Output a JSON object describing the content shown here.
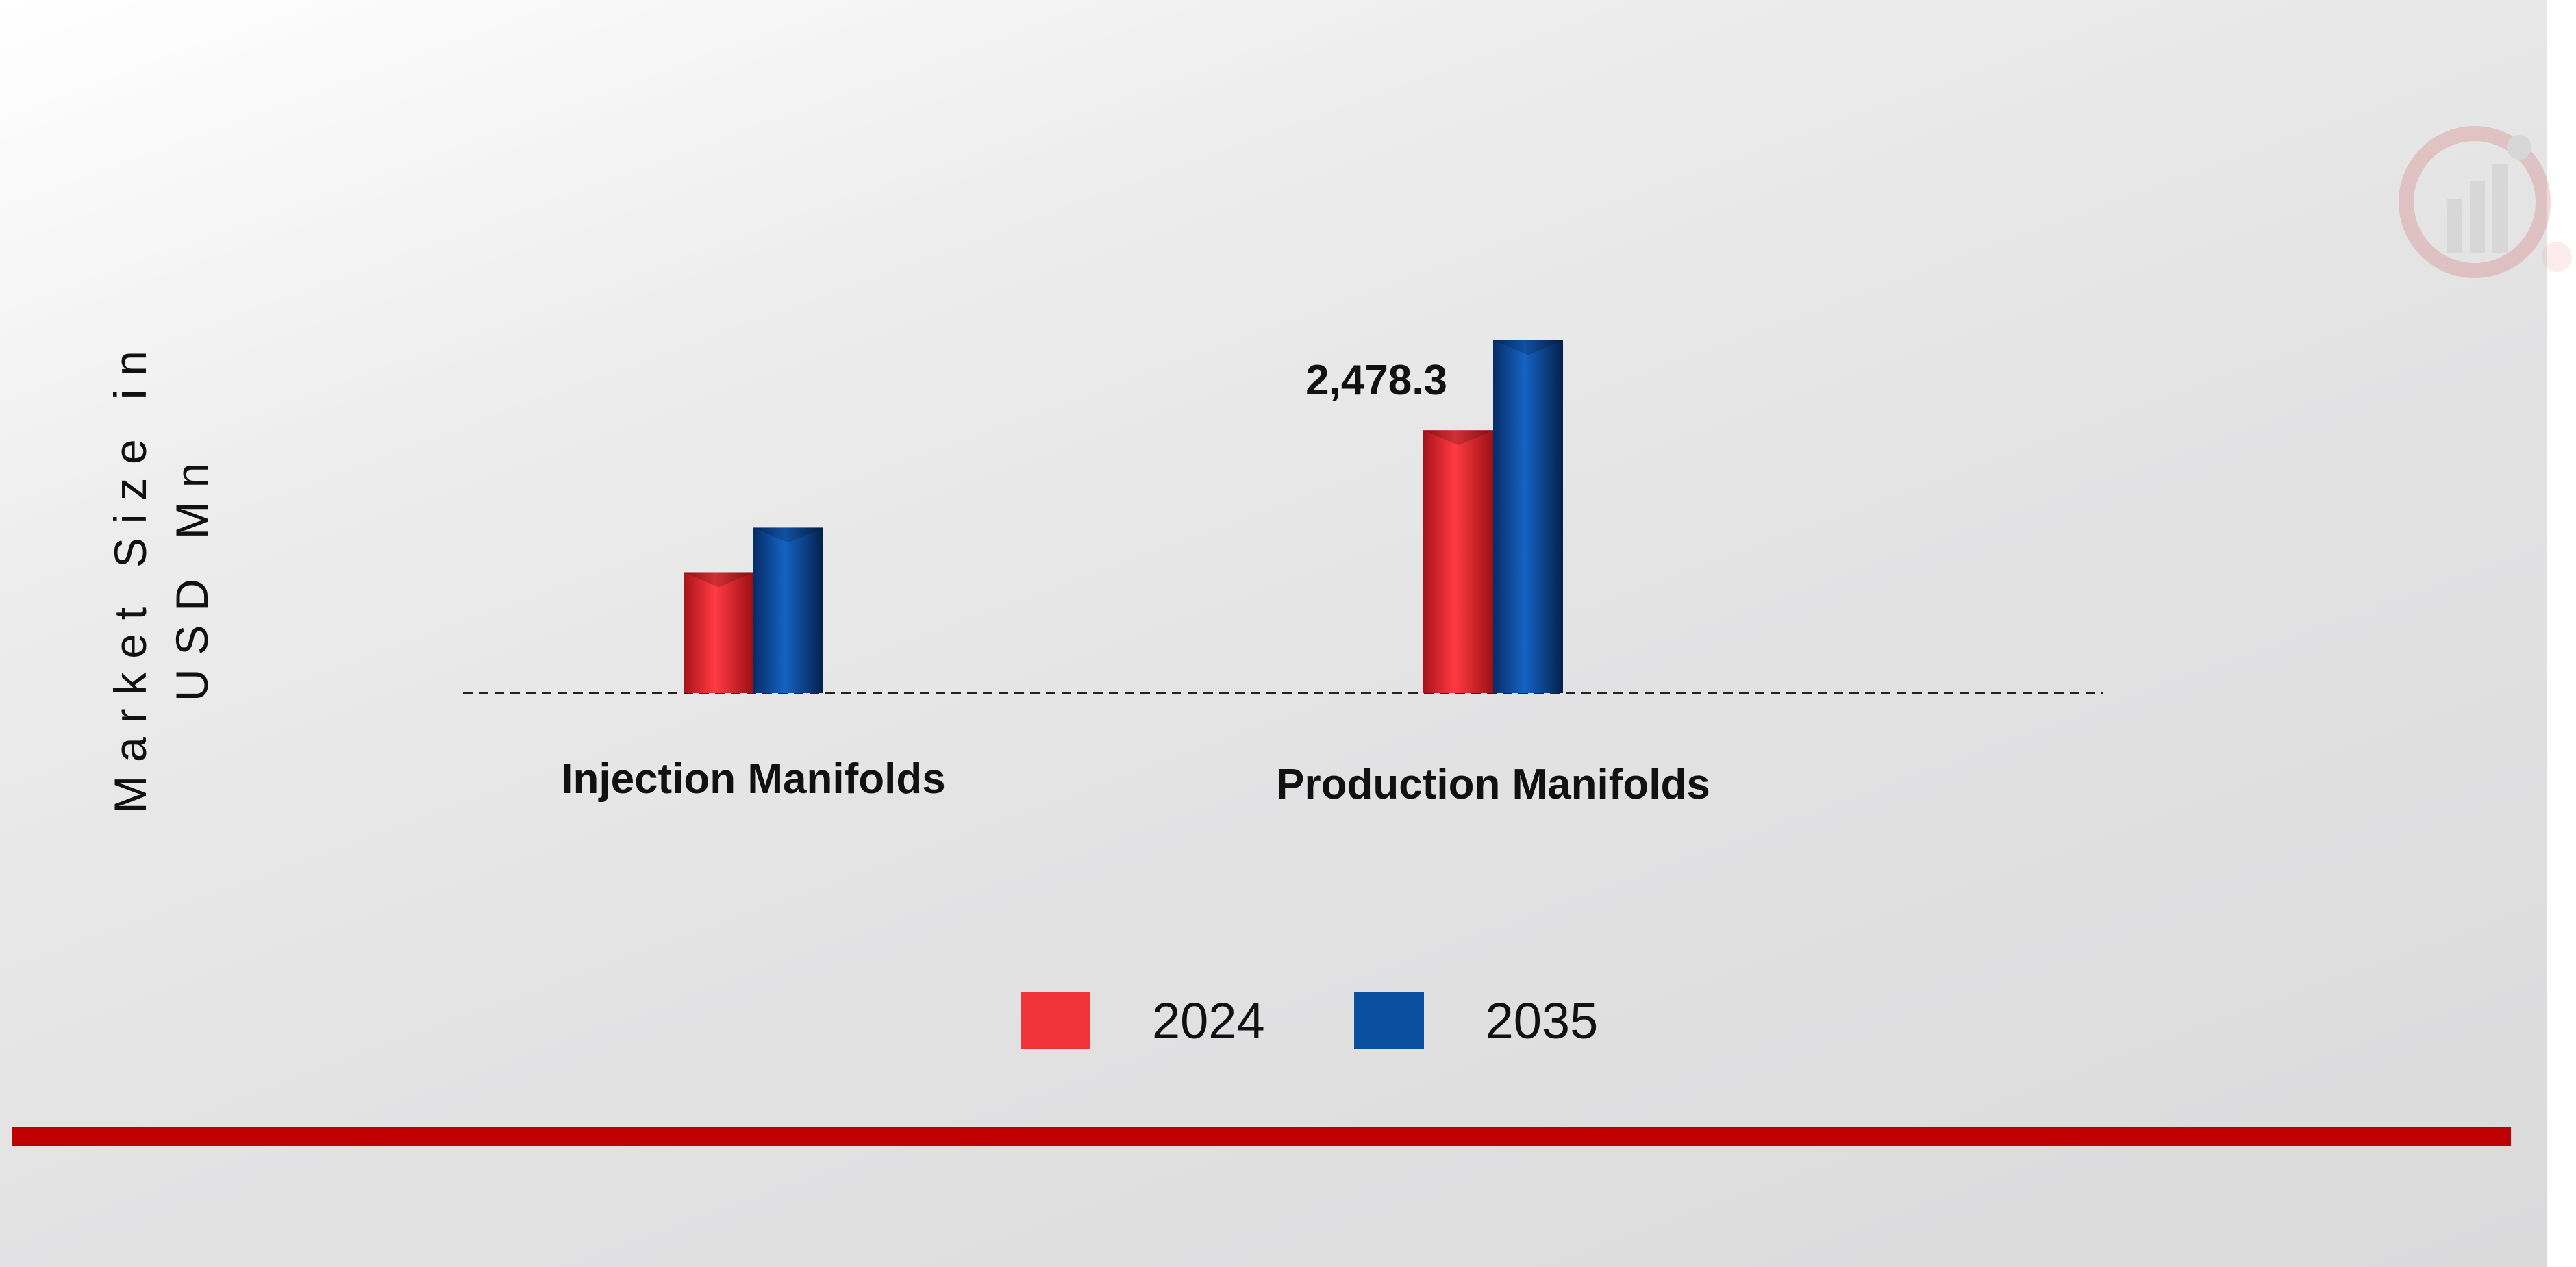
{
  "chart_data": {
    "type": "bar",
    "categories": [
      "Injection Manifolds",
      "Production Manifolds"
    ],
    "series": [
      {
        "name": "2024",
        "color": "#e8232b",
        "values": [
          1140,
          2478.3
        ]
      },
      {
        "name": "2035",
        "color": "#0a4fa0",
        "values": [
          1560,
          3330
        ]
      }
    ],
    "data_labels": [
      {
        "category": "Production Manifolds",
        "series": "2024",
        "text": "2,478.3"
      }
    ],
    "ylabel": "Market Size in USD Mn",
    "ylim": [
      0,
      3500
    ],
    "y_axis_ticks_shown": false,
    "baseline": "dashed",
    "grid": false,
    "legend_position": "bottom-center"
  },
  "legend": {
    "items": [
      {
        "label": "2024",
        "color": "#f2333a"
      },
      {
        "label": "2035",
        "color": "#0a4fa0"
      }
    ]
  },
  "accent_color": "#c00000",
  "logo": {
    "icon": "brand-logo-icon"
  }
}
